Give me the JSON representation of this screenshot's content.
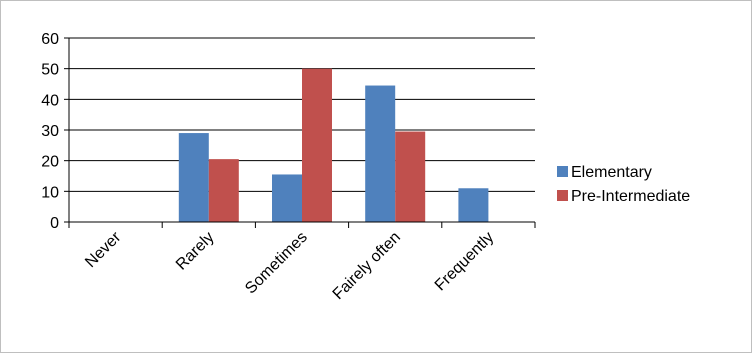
{
  "chart_data": {
    "type": "bar",
    "title": "",
    "xlabel": "",
    "ylabel": "",
    "categories": [
      "Never",
      "Rarely",
      "Sometimes",
      "Fairely often",
      "Frequently"
    ],
    "series": [
      {
        "name": "Elementary",
        "values": [
          0,
          29,
          15.5,
          44.5,
          11
        ],
        "color": "#4f81bd"
      },
      {
        "name": "Pre-Intermediate",
        "values": [
          0,
          20.5,
          50,
          29.5,
          0
        ],
        "color": "#c0504d"
      }
    ],
    "ylim": [
      0,
      60
    ],
    "yticks": [
      0,
      10,
      20,
      30,
      40,
      50,
      60
    ],
    "grid": true,
    "legend": "right"
  }
}
